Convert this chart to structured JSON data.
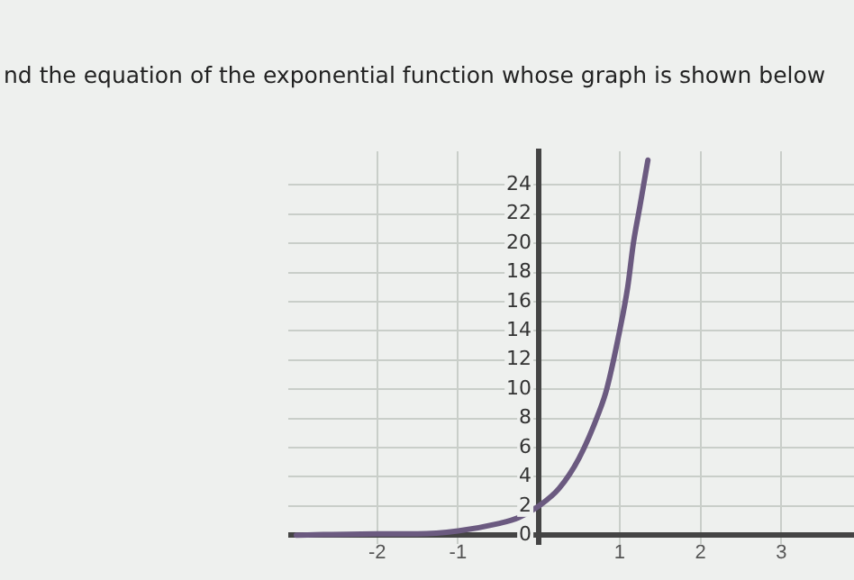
{
  "chart_data": {
    "type": "line",
    "title": "nd the equation of the exponential function whose graph is shown below",
    "x": [
      -3,
      -2,
      -1.5,
      -1,
      -0.5,
      -0.25,
      0,
      0.25,
      0.5,
      0.75,
      0.84,
      1,
      1.1,
      1.17,
      1.25,
      1.35
    ],
    "series": [
      {
        "color": "#6b5a80",
        "values": [
          0,
          0.1,
          0.1,
          0.3,
          0.8,
          1.2,
          2,
          3.2,
          5.3,
          8.5,
          10,
          14,
          17,
          20,
          22.5,
          25.7
        ]
      }
    ],
    "xlim": [
      -3.1,
      3.9
    ],
    "ylim": [
      -0.6,
      26.3
    ],
    "xticks": [
      -2,
      -1,
      1,
      2,
      3
    ],
    "yticks": [
      0,
      2,
      4,
      6,
      8,
      10,
      12,
      14,
      16,
      18,
      20,
      22,
      24
    ],
    "grid": true,
    "legend": false,
    "marker": "none",
    "line_style": "solid"
  }
}
